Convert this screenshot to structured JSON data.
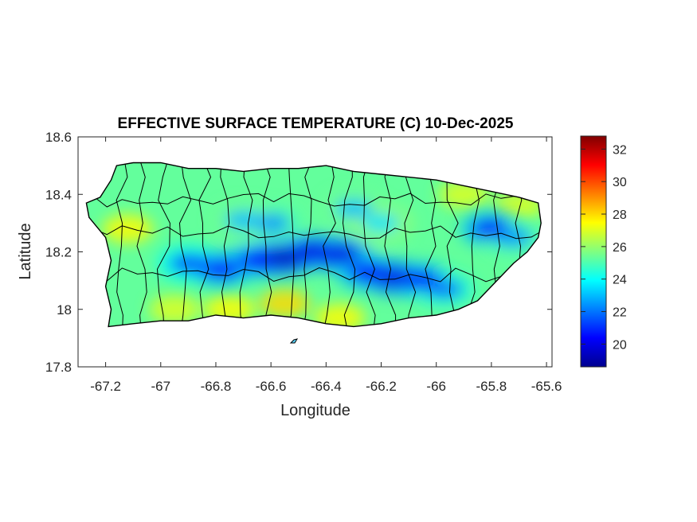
{
  "chart_data": {
    "type": "heatmap",
    "title": "EFFECTIVE SURFACE TEMPERATURE (C) 10-Dec-2025",
    "xlabel": "Longitude",
    "ylabel": "Latitude",
    "xlim": [
      -67.3,
      -65.58
    ],
    "ylim": [
      17.8,
      18.6
    ],
    "xticks": [
      -67.2,
      -67,
      -66.8,
      -66.6,
      -66.4,
      -66.2,
      -66,
      -65.8,
      -65.6
    ],
    "xtick_labels": [
      "-67.2",
      "-67",
      "-66.8",
      "-66.6",
      "-66.4",
      "-66.2",
      "-66",
      "-65.8",
      "-65.6"
    ],
    "yticks": [
      17.8,
      18,
      18.2,
      18.4,
      18.6
    ],
    "ytick_labels": [
      "17.8",
      "18",
      "18.2",
      "18.4",
      "18.6"
    ],
    "colormap": "jet",
    "clim": [
      18.6,
      32.8
    ],
    "colorbar_ticks": [
      20,
      22,
      24,
      26,
      28,
      30,
      32
    ],
    "colorbar_tick_labels": [
      "20",
      "22",
      "24",
      "26",
      "28",
      "30",
      "32"
    ],
    "grid": false,
    "island_outline": [
      [
        -67.27,
        18.37
      ],
      [
        -67.22,
        18.39
      ],
      [
        -67.18,
        18.45
      ],
      [
        -67.16,
        18.5
      ],
      [
        -67.1,
        18.51
      ],
      [
        -67.0,
        18.51
      ],
      [
        -66.9,
        18.49
      ],
      [
        -66.8,
        18.49
      ],
      [
        -66.7,
        18.48
      ],
      [
        -66.6,
        18.49
      ],
      [
        -66.5,
        18.49
      ],
      [
        -66.4,
        18.5
      ],
      [
        -66.3,
        18.48
      ],
      [
        -66.2,
        18.47
      ],
      [
        -66.1,
        18.46
      ],
      [
        -66.0,
        18.45
      ],
      [
        -65.9,
        18.43
      ],
      [
        -65.8,
        18.41
      ],
      [
        -65.7,
        18.39
      ],
      [
        -65.63,
        18.37
      ],
      [
        -65.62,
        18.3
      ],
      [
        -65.63,
        18.25
      ],
      [
        -65.67,
        18.2
      ],
      [
        -65.72,
        18.16
      ],
      [
        -65.78,
        18.1
      ],
      [
        -65.85,
        18.03
      ],
      [
        -65.92,
        18.0
      ],
      [
        -66.0,
        17.98
      ],
      [
        -66.1,
        17.97
      ],
      [
        -66.2,
        17.95
      ],
      [
        -66.3,
        17.94
      ],
      [
        -66.4,
        17.95
      ],
      [
        -66.5,
        17.97
      ],
      [
        -66.6,
        17.98
      ],
      [
        -66.7,
        17.97
      ],
      [
        -66.8,
        17.98
      ],
      [
        -66.9,
        17.96
      ],
      [
        -67.0,
        17.96
      ],
      [
        -67.1,
        17.95
      ],
      [
        -67.19,
        17.94
      ],
      [
        -67.18,
        18.0
      ],
      [
        -67.2,
        18.08
      ],
      [
        -67.18,
        18.17
      ],
      [
        -67.2,
        18.25
      ],
      [
        -67.26,
        18.32
      ]
    ],
    "cool_zones": [
      {
        "lon": -66.9,
        "lat": 18.16,
        "temp": 21.5
      },
      {
        "lon": -66.78,
        "lat": 18.14,
        "temp": 20.5
      },
      {
        "lon": -66.65,
        "lat": 18.17,
        "temp": 20.5
      },
      {
        "lon": -66.55,
        "lat": 18.18,
        "temp": 19.5
      },
      {
        "lon": -66.45,
        "lat": 18.2,
        "temp": 20.0
      },
      {
        "lon": -66.35,
        "lat": 18.19,
        "temp": 20.0
      },
      {
        "lon": -66.25,
        "lat": 18.13,
        "temp": 20.5
      },
      {
        "lon": -66.15,
        "lat": 18.11,
        "temp": 20.0
      },
      {
        "lon": -66.05,
        "lat": 18.1,
        "temp": 20.5
      },
      {
        "lon": -65.97,
        "lat": 18.07,
        "temp": 22.0
      },
      {
        "lon": -65.8,
        "lat": 18.28,
        "temp": 20.5
      },
      {
        "lon": -65.72,
        "lat": 18.25,
        "temp": 22.5
      },
      {
        "lon": -66.6,
        "lat": 18.3,
        "temp": 22.5
      },
      {
        "lon": -66.7,
        "lat": 18.31,
        "temp": 23.0
      },
      {
        "lon": -66.3,
        "lat": 18.35,
        "temp": 23.0
      },
      {
        "lon": -66.2,
        "lat": 18.3,
        "temp": 23.5
      }
    ],
    "warm_zones": [
      {
        "lon": -67.12,
        "lat": 18.28,
        "temp": 27.5
      },
      {
        "lon": -66.55,
        "lat": 18.02,
        "temp": 28.0
      },
      {
        "lon": -66.75,
        "lat": 18.0,
        "temp": 27.5
      },
      {
        "lon": -66.35,
        "lat": 17.97,
        "temp": 27.5
      },
      {
        "lon": -65.9,
        "lat": 18.4,
        "temp": 27.0
      },
      {
        "lon": -65.7,
        "lat": 18.36,
        "temp": 27.0
      },
      {
        "lon": -66.95,
        "lat": 18.0,
        "temp": 27.0
      }
    ]
  }
}
